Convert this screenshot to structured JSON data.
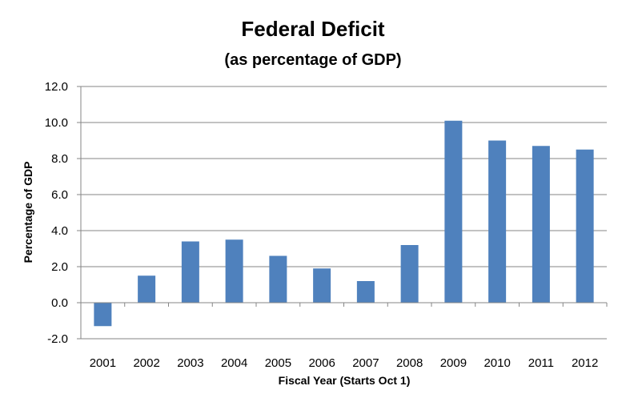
{
  "chart_data": {
    "type": "bar",
    "title": "Federal Deficit",
    "subtitle": "(as percentage of GDP)",
    "xlabel": "Fiscal Year (Starts Oct 1)",
    "ylabel": "Percentage of GDP",
    "categories": [
      "2001",
      "2002",
      "2003",
      "2004",
      "2005",
      "2006",
      "2007",
      "2008",
      "2009",
      "2010",
      "2011",
      "2012"
    ],
    "values": [
      -1.3,
      1.5,
      3.4,
      3.5,
      2.6,
      1.9,
      1.2,
      3.2,
      10.1,
      9.0,
      8.7,
      8.5
    ],
    "ylim": [
      -2.0,
      12.0
    ],
    "yticks": [
      "-2.0",
      "0.0",
      "2.0",
      "4.0",
      "6.0",
      "8.0",
      "10.0",
      "12.0"
    ],
    "grid": true,
    "legend": "none",
    "bar_color": "#4f81bd",
    "grid_color": "#868686"
  }
}
